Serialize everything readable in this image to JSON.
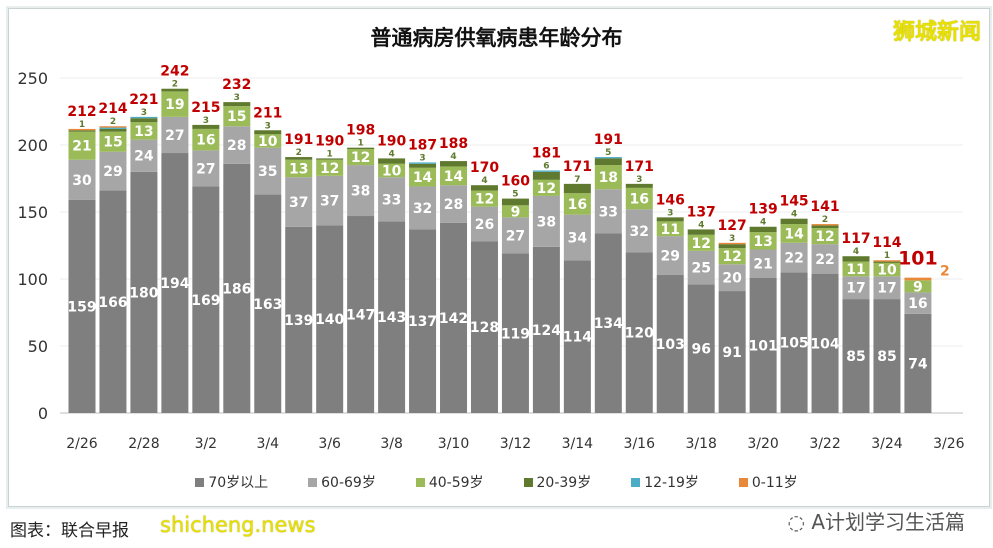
{
  "title": "普通病房供氧病患年龄分布",
  "watermarks": {
    "top_right": "狮城新闻",
    "wechat": "A计划学习生活篇",
    "site": "shicheng.news"
  },
  "source": "图表：联合早报",
  "chart_data": {
    "type": "bar",
    "stacked": true,
    "title": "普通病房供氧病患年龄分布",
    "categories": [
      "2/26",
      "2/27",
      "2/28",
      "3/1",
      "3/2",
      "3/3",
      "3/4",
      "3/5",
      "3/6",
      "3/7",
      "3/8",
      "3/9",
      "3/10",
      "3/11",
      "3/12",
      "3/13",
      "3/14",
      "3/15",
      "3/16",
      "3/17",
      "3/18",
      "3/19",
      "3/20",
      "3/21",
      "3/22",
      "3/23",
      "3/24",
      "3/25"
    ],
    "x_tick_labels": [
      "2/26",
      "2/28",
      "3/2",
      "3/4",
      "3/6",
      "3/8",
      "3/10",
      "3/12",
      "3/14",
      "3/16",
      "3/18",
      "3/20",
      "3/22",
      "3/24",
      "3/26"
    ],
    "y_ticks": [
      0,
      50,
      100,
      150,
      200,
      250
    ],
    "ylim": [
      0,
      250
    ],
    "grid": true,
    "legend_position": "bottom",
    "series": [
      {
        "name": "70岁以上",
        "color": "#7f7f7f",
        "values": [
          159,
          166,
          180,
          194,
          169,
          186,
          163,
          139,
          140,
          147,
          143,
          137,
          142,
          128,
          119,
          124,
          114,
          134,
          120,
          103,
          96,
          91,
          101,
          105,
          104,
          85,
          85,
          74
        ]
      },
      {
        "name": "60-69岁",
        "color": "#a6a6a6",
        "values": [
          30,
          29,
          24,
          27,
          27,
          28,
          35,
          37,
          37,
          38,
          33,
          32,
          28,
          26,
          27,
          38,
          34,
          33,
          32,
          29,
          25,
          20,
          21,
          22,
          22,
          17,
          17,
          16
        ]
      },
      {
        "name": "40-59岁",
        "color": "#9bbb59",
        "values": [
          21,
          15,
          13,
          19,
          16,
          15,
          10,
          13,
          12,
          12,
          10,
          14,
          14,
          12,
          9,
          12,
          16,
          18,
          16,
          11,
          12,
          12,
          13,
          14,
          12,
          11,
          10,
          9
        ]
      },
      {
        "name": "20-39岁",
        "color": "#5f7a2e",
        "values": [
          1,
          2,
          3,
          2,
          3,
          3,
          3,
          2,
          1,
          1,
          4,
          3,
          4,
          4,
          5,
          6,
          7,
          5,
          3,
          3,
          4,
          3,
          4,
          4,
          2,
          4,
          1,
          0
        ]
      },
      {
        "name": "12-19岁",
        "color": "#4bacc6",
        "values": [
          0,
          1,
          1,
          0,
          0,
          0,
          0,
          0,
          0,
          0,
          0,
          1,
          0,
          0,
          0,
          1,
          0,
          1,
          0,
          0,
          0,
          0,
          0,
          0,
          0,
          0,
          0,
          0
        ]
      },
      {
        "name": "0-11岁",
        "color": "#e8883a",
        "values": [
          1,
          1,
          0,
          0,
          0,
          0,
          0,
          0,
          0,
          0,
          0,
          0,
          0,
          0,
          0,
          0,
          0,
          0,
          0,
          0,
          0,
          1,
          0,
          0,
          1,
          0,
          1,
          2
        ]
      }
    ],
    "totals": [
      212,
      214,
      221,
      242,
      215,
      232,
      211,
      191,
      190,
      198,
      190,
      187,
      188,
      170,
      160,
      181,
      171,
      191,
      171,
      146,
      137,
      127,
      139,
      145,
      141,
      117,
      114,
      101
    ],
    "total_label_color": "#c00000"
  }
}
